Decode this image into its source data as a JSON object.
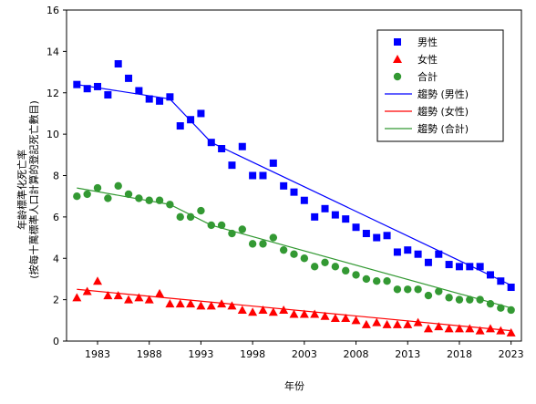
{
  "chart_data": {
    "type": "scatter",
    "title": "",
    "xlabel": "年份",
    "ylabel_lines": [
      "年齡標準化死亡率",
      "(按每十萬標準人口計算的登記死亡數目)"
    ],
    "xlim": [
      1980,
      2024
    ],
    "ylim": [
      0,
      16
    ],
    "xticks": [
      1983,
      1988,
      1993,
      1998,
      2003,
      2008,
      2013,
      2018,
      2023
    ],
    "yticks": [
      0,
      2,
      4,
      6,
      8,
      10,
      12,
      14,
      16
    ],
    "grid": false,
    "legend_position": "top-right",
    "x": [
      1981,
      1982,
      1983,
      1984,
      1985,
      1986,
      1987,
      1988,
      1989,
      1990,
      1991,
      1992,
      1993,
      1994,
      1995,
      1996,
      1997,
      1998,
      1999,
      2000,
      2001,
      2002,
      2003,
      2004,
      2005,
      2006,
      2007,
      2008,
      2009,
      2010,
      2011,
      2012,
      2013,
      2014,
      2015,
      2016,
      2017,
      2018,
      2019,
      2020,
      2021,
      2022,
      2023
    ],
    "series": [
      {
        "name": "男性",
        "marker": "square",
        "color": "#0000ff",
        "values": [
          12.4,
          12.2,
          12.3,
          11.9,
          13.4,
          12.7,
          12.1,
          11.7,
          11.6,
          11.8,
          10.4,
          10.7,
          11.0,
          9.6,
          9.3,
          8.5,
          9.4,
          8.0,
          8.0,
          8.6,
          7.5,
          7.2,
          6.8,
          6.0,
          6.4,
          6.1,
          5.9,
          5.5,
          5.2,
          5.0,
          5.1,
          4.3,
          4.4,
          4.2,
          3.8,
          4.2,
          3.7,
          3.6,
          3.6,
          3.6,
          3.2,
          2.9,
          2.6
        ]
      },
      {
        "name": "女性",
        "marker": "triangle",
        "color": "#ff0000",
        "values": [
          2.1,
          2.4,
          2.9,
          2.2,
          2.2,
          2.0,
          2.1,
          2.0,
          2.3,
          1.8,
          1.8,
          1.8,
          1.7,
          1.7,
          1.8,
          1.7,
          1.5,
          1.4,
          1.5,
          1.4,
          1.5,
          1.3,
          1.3,
          1.3,
          1.2,
          1.1,
          1.1,
          1.0,
          0.8,
          0.9,
          0.8,
          0.8,
          0.8,
          0.9,
          0.6,
          0.7,
          0.6,
          0.6,
          0.6,
          0.5,
          0.6,
          0.5,
          0.4
        ]
      },
      {
        "name": "合計",
        "marker": "circle",
        "color": "#339933",
        "values": [
          7.0,
          7.1,
          7.4,
          6.9,
          7.5,
          7.1,
          6.9,
          6.8,
          6.8,
          6.6,
          6.0,
          6.0,
          6.3,
          5.6,
          5.6,
          5.2,
          5.4,
          4.7,
          4.7,
          5.0,
          4.4,
          4.2,
          4.0,
          3.6,
          3.8,
          3.6,
          3.4,
          3.2,
          3.0,
          2.9,
          2.9,
          2.5,
          2.5,
          2.5,
          2.2,
          2.4,
          2.1,
          2.0,
          2.0,
          2.0,
          1.8,
          1.6,
          1.5
        ]
      }
    ],
    "trends": [
      {
        "name": "趨勢 (男性)",
        "color": "#0000ff",
        "points": [
          [
            1981,
            12.4
          ],
          [
            1990,
            11.7
          ],
          [
            1994,
            9.6
          ],
          [
            2023,
            2.7
          ]
        ]
      },
      {
        "name": "趨勢 (女性)",
        "color": "#ff0000",
        "points": [
          [
            1981,
            2.5
          ],
          [
            2023,
            0.5
          ]
        ]
      },
      {
        "name": "趨勢 (合計)",
        "color": "#339933",
        "points": [
          [
            1981,
            7.4
          ],
          [
            1990,
            6.6
          ],
          [
            1994,
            5.6
          ],
          [
            2023,
            1.6
          ]
        ]
      }
    ]
  }
}
